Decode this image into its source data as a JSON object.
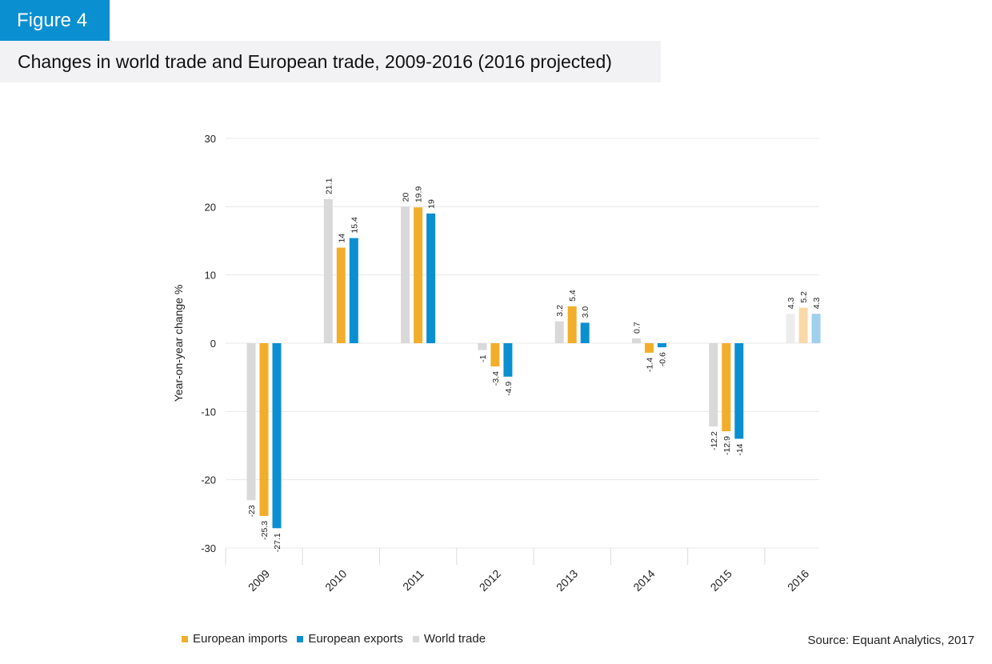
{
  "figure_label": "Figure 4",
  "title": "Changes in world trade and European trade, 2009-2016 (2016 projected)",
  "source": "Source: Equant Analytics, 2017",
  "colors": {
    "world": "#d9d9d9",
    "imports": "#f2ae2a",
    "exports": "#0a8fd1",
    "world_proj": "#ececec",
    "imports_proj": "#f9d9a8",
    "exports_proj": "#9fd0ee",
    "grid": "#e8e8e8"
  },
  "legend": [
    {
      "label": "European imports",
      "color": "#f2ae2a"
    },
    {
      "label": "European exports",
      "color": "#0a8fd1"
    },
    {
      "label": "World trade",
      "color": "#d9d9d9"
    }
  ],
  "chart_data": {
    "type": "bar",
    "categories": [
      "2009",
      "2010",
      "2011",
      "2012",
      "2013",
      "2014",
      "2015",
      "2016"
    ],
    "series": [
      {
        "name": "World trade",
        "values": [
          -23,
          21.1,
          20,
          -1,
          3.2,
          0.7,
          -12.2,
          4.3
        ],
        "labels": [
          "-23",
          "21.1",
          "20",
          "-1",
          "3.2",
          "0.7",
          "-12.2",
          "4.3"
        ]
      },
      {
        "name": "European imports",
        "values": [
          -25.3,
          14,
          19.9,
          -3.4,
          5.4,
          -1.4,
          -12.9,
          5.2
        ],
        "labels": [
          "-25.3",
          "14",
          "19.9",
          "-3.4",
          "5.4",
          "-1.4",
          "-12.9",
          "5.2"
        ]
      },
      {
        "name": "European exports",
        "values": [
          -27.1,
          15.4,
          19,
          -4.9,
          3.0,
          -0.6,
          -14,
          4.3
        ],
        "labels": [
          "-27.1",
          "15.4",
          "19",
          "-4.9",
          "3.0",
          "-0.6",
          "-14",
          "4.3"
        ]
      }
    ],
    "projected_categories": [
      "2016"
    ],
    "ylabel": "Year-on-year change %",
    "xlabel": "",
    "ylim": [
      -30,
      30
    ],
    "yticks": [
      30,
      20,
      10,
      0,
      -10,
      -20,
      -30
    ],
    "ytick_labels": [
      "30",
      "20",
      "10",
      "0",
      "-10",
      "-20",
      "-30"
    ],
    "grid": true
  }
}
